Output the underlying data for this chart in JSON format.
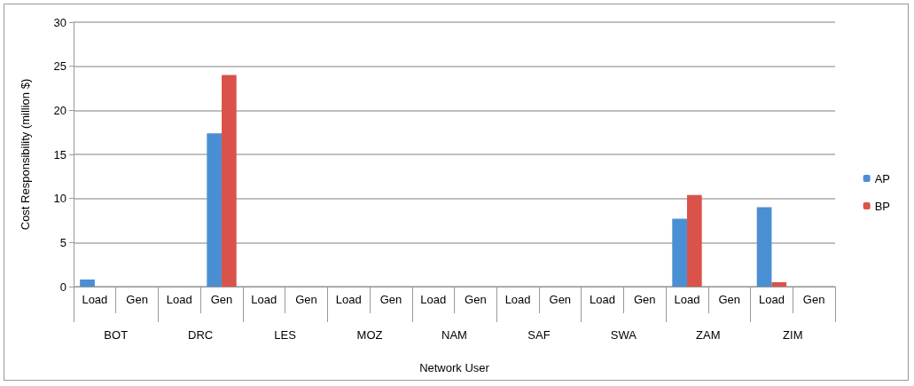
{
  "chart_data": {
    "type": "bar",
    "xlabel": "Network User",
    "ylabel": "Cost Responsibility (million $)",
    "categories": [
      "Load",
      "Gen",
      "Load",
      "Gen",
      "Load",
      "Gen",
      "Load",
      "Gen",
      "Load",
      "Gen",
      "Load",
      "Gen",
      "Load",
      "Gen",
      "Load",
      "Gen",
      "Load",
      "Gen"
    ],
    "annotations": [
      "BOT",
      "DRC",
      "LES",
      "MOZ",
      "NAM",
      "SAF",
      "SWA",
      "ZAM",
      "ZIM"
    ],
    "series": [
      {
        "name": "AP",
        "color": "#4a8fd4",
        "values": [
          0.8,
          0,
          0,
          17.4,
          0,
          0,
          0,
          0,
          0,
          0,
          0,
          0,
          0,
          0,
          7.7,
          0,
          9.0,
          0
        ]
      },
      {
        "name": "BP",
        "color": "#d9534a",
        "values": [
          0,
          0,
          0,
          24.0,
          0,
          0,
          0,
          0,
          0,
          0,
          0,
          0,
          0,
          0,
          10.4,
          0,
          0.5,
          0
        ]
      }
    ],
    "ylim": [
      0,
      30
    ],
    "yticks": [
      0,
      5,
      10,
      15,
      20,
      25,
      30
    ],
    "grid": "y",
    "legend": "right"
  }
}
